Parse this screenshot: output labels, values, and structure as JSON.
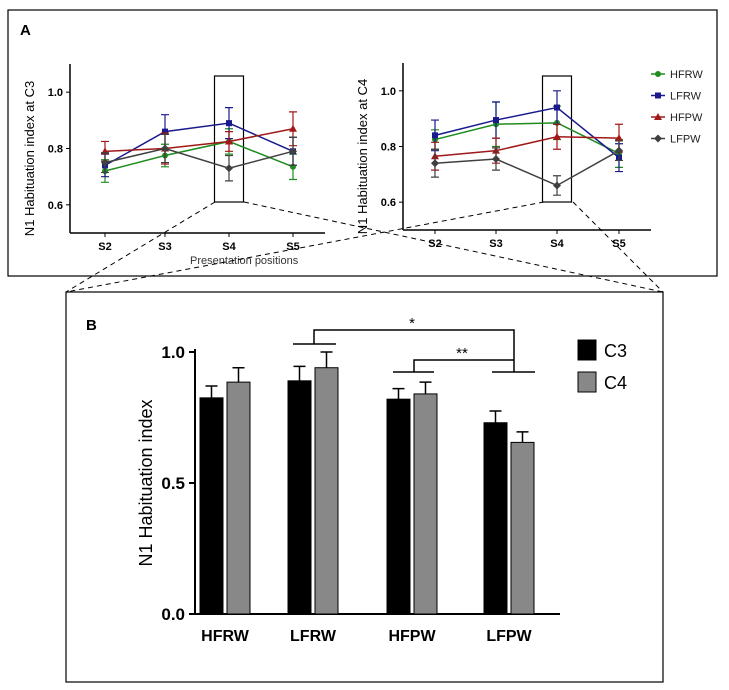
{
  "chart_data": [
    {
      "type": "line",
      "panel": "A",
      "ylabel": "N1 Habituation index at C3",
      "xlabel": "Presentation positions",
      "categories": [
        "S2",
        "S3",
        "S4",
        "S5"
      ],
      "ylim": [
        0.5,
        1.1
      ],
      "yticks": [
        "0.6",
        "0.8",
        "1.0"
      ],
      "highlight": "S4",
      "series": [
        {
          "name": "HFRW",
          "color": "#1e8c1e",
          "marker": "circle",
          "values": [
            0.72,
            0.775,
            0.825,
            0.735
          ],
          "errors": [
            0.04,
            0.04,
            0.045,
            0.045
          ]
        },
        {
          "name": "LFRW",
          "color": "#1a1a8c",
          "marker": "square",
          "values": [
            0.74,
            0.86,
            0.89,
            0.79
          ],
          "errors": [
            0.04,
            0.06,
            0.055,
            0.05
          ]
        },
        {
          "name": "HFPW",
          "color": "#a01818",
          "marker": "triangle",
          "values": [
            0.79,
            0.8,
            0.825,
            0.87
          ],
          "errors": [
            0.035,
            0.055,
            0.035,
            0.06
          ]
        },
        {
          "name": "LFPW",
          "color": "#404040",
          "marker": "diamond",
          "values": [
            0.75,
            0.8,
            0.73,
            0.79
          ],
          "errors": [
            0.035,
            0.05,
            0.045,
            0.05
          ]
        }
      ]
    },
    {
      "type": "line",
      "ylabel": "N1 Habituation index at C4",
      "categories": [
        "S2",
        "S3",
        "S4",
        "S5"
      ],
      "ylim": [
        0.5,
        1.1
      ],
      "yticks": [
        "0.6",
        "0.8",
        "1.0"
      ],
      "highlight": "S4",
      "legend": "right",
      "series": [
        {
          "name": "HFRW",
          "color": "#1e8c1e",
          "marker": "circle",
          "values": [
            0.825,
            0.88,
            0.885,
            0.775
          ],
          "errors": [
            0.035,
            0.08,
            0.06,
            0.05
          ]
        },
        {
          "name": "LFRW",
          "color": "#1a1a8c",
          "marker": "square",
          "values": [
            0.84,
            0.895,
            0.94,
            0.76
          ],
          "errors": [
            0.055,
            0.065,
            0.06,
            0.05
          ]
        },
        {
          "name": "HFPW",
          "color": "#a01818",
          "marker": "triangle",
          "values": [
            0.765,
            0.785,
            0.835,
            0.83
          ],
          "errors": [
            0.05,
            0.045,
            0.045,
            0.05
          ]
        },
        {
          "name": "LFPW",
          "color": "#404040",
          "marker": "diamond",
          "values": [
            0.74,
            0.755,
            0.66,
            0.785
          ],
          "errors": [
            0.05,
            0.04,
            0.035,
            0.035
          ]
        }
      ]
    },
    {
      "type": "bar",
      "panel": "B",
      "ylabel": "N1 Habituation index",
      "categories": [
        "HFRW",
        "LFRW",
        "HFPW",
        "LFPW"
      ],
      "ylim": [
        0,
        1.0
      ],
      "yticks": [
        "0.0",
        "0.5",
        "1.0"
      ],
      "legend": "right",
      "series": [
        {
          "name": "C3",
          "color": "#000000",
          "values": [
            0.825,
            0.89,
            0.82,
            0.73
          ],
          "errors": [
            0.045,
            0.055,
            0.04,
            0.045
          ]
        },
        {
          "name": "C4",
          "color": "#888888",
          "values": [
            0.885,
            0.94,
            0.84,
            0.655
          ],
          "errors": [
            0.055,
            0.06,
            0.045,
            0.04
          ]
        }
      ],
      "significance": [
        {
          "from": "LFRW",
          "to": "LFPW",
          "label": "*"
        },
        {
          "from": "HFPW",
          "to": "LFPW",
          "label": "**"
        }
      ]
    }
  ]
}
